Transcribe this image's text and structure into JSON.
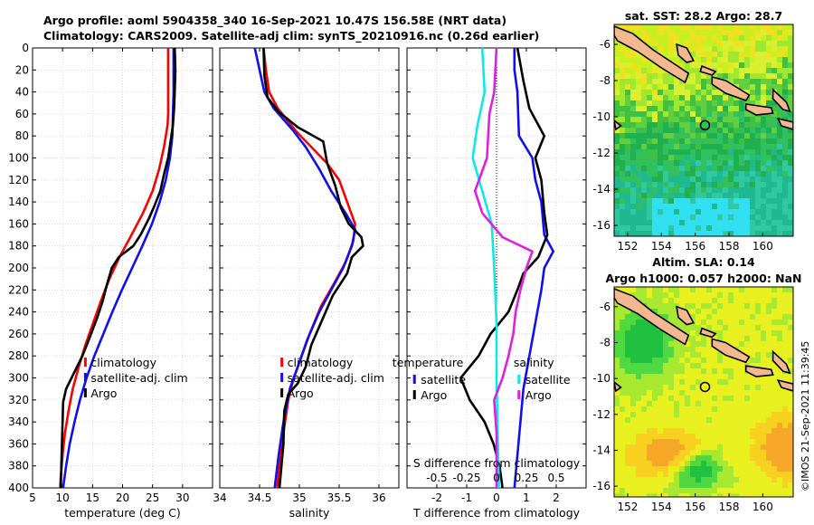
{
  "header": {
    "line1": "Argo profile: aoml 5904358_340 16-Sep-2021 10.47S 156.58E (NRT data)",
    "line2": "Climatology: CARS2009. Satellite-adj clim: synTS_20210916.nc (0.26d earlier)"
  },
  "colors": {
    "climatology": "#ff0000",
    "satellite": "#1010ee",
    "argo": "#000000",
    "s_sat": "#10e8e8",
    "s_argo": "#e020e0"
  },
  "chart_data": [
    {
      "id": "temperature",
      "type": "line",
      "xlabel": "temperature (deg C)",
      "ylabel": "",
      "xlim": [
        5,
        35
      ],
      "ylim": [
        400,
        0
      ],
      "xticks": [
        5,
        10,
        15,
        20,
        25,
        30
      ],
      "xtick_labels": [
        "5",
        "10",
        "15",
        "20",
        "25",
        "30"
      ],
      "yticks": [
        0,
        20,
        40,
        60,
        80,
        100,
        120,
        140,
        160,
        180,
        200,
        220,
        240,
        260,
        280,
        300,
        320,
        340,
        360,
        380,
        400
      ],
      "ytick_labels": [
        "0",
        "20",
        "40",
        "60",
        "80",
        "100",
        "120",
        "140",
        "160",
        "180",
        "200",
        "220",
        "240",
        "260",
        "280",
        "300",
        "320",
        "340",
        "360",
        "380",
        "400"
      ],
      "legend": [
        "climatology",
        "satellite-adj. clim",
        "Argo"
      ],
      "series": [
        {
          "name": "climatology",
          "points": [
            [
              27.6,
              0
            ],
            [
              27.6,
              20
            ],
            [
              27.6,
              40
            ],
            [
              27.6,
              60
            ],
            [
              27.5,
              70
            ],
            [
              26.9,
              90
            ],
            [
              26.1,
              110
            ],
            [
              25.0,
              130
            ],
            [
              23.4,
              150
            ],
            [
              21.5,
              170
            ],
            [
              19.5,
              190
            ],
            [
              17.8,
              210
            ],
            [
              16.4,
              230
            ],
            [
              15.1,
              250
            ],
            [
              13.8,
              270
            ],
            [
              12.7,
              290
            ],
            [
              11.7,
              310
            ],
            [
              11.0,
              330
            ],
            [
              10.4,
              350
            ],
            [
              10.0,
              370
            ],
            [
              9.7,
              390
            ],
            [
              9.6,
              400
            ]
          ]
        },
        {
          "name": "satellite-adj. clim",
          "points": [
            [
              28.5,
              0
            ],
            [
              28.5,
              20
            ],
            [
              28.5,
              40
            ],
            [
              28.4,
              60
            ],
            [
              28.3,
              80
            ],
            [
              27.9,
              100
            ],
            [
              27.2,
              120
            ],
            [
              26.2,
              140
            ],
            [
              24.9,
              160
            ],
            [
              23.3,
              180
            ],
            [
              21.6,
              200
            ],
            [
              19.9,
              220
            ],
            [
              18.3,
              240
            ],
            [
              16.8,
              260
            ],
            [
              15.3,
              280
            ],
            [
              14.0,
              300
            ],
            [
              12.9,
              320
            ],
            [
              12.0,
              340
            ],
            [
              11.2,
              360
            ],
            [
              10.6,
              380
            ],
            [
              10.1,
              400
            ]
          ]
        },
        {
          "name": "Argo",
          "points": [
            [
              28.7,
              0
            ],
            [
              28.8,
              20
            ],
            [
              28.7,
              40
            ],
            [
              28.6,
              55
            ],
            [
              28.4,
              70
            ],
            [
              28.0,
              85
            ],
            [
              27.6,
              100
            ],
            [
              26.9,
              115
            ],
            [
              26.3,
              130
            ],
            [
              25.2,
              145
            ],
            [
              24.4,
              155
            ],
            [
              23.0,
              170
            ],
            [
              21.8,
              180
            ],
            [
              19.4,
              190
            ],
            [
              18.2,
              200
            ],
            [
              17.4,
              215
            ],
            [
              16.7,
              230
            ],
            [
              15.8,
              245
            ],
            [
              15.1,
              255
            ],
            [
              14.2,
              268
            ],
            [
              13.3,
              280
            ],
            [
              12.4,
              290
            ],
            [
              11.5,
              300
            ],
            [
              10.6,
              310
            ],
            [
              10.1,
              322
            ],
            [
              10.0,
              340
            ],
            [
              9.9,
              360
            ],
            [
              9.8,
              380
            ],
            [
              9.7,
              400
            ]
          ]
        }
      ]
    },
    {
      "id": "salinity",
      "type": "line",
      "xlabel": "salinity",
      "ylabel": "",
      "xlim": [
        34,
        36.25
      ],
      "ylim": [
        400,
        0
      ],
      "xticks": [
        34,
        34.5,
        35,
        35.5,
        36
      ],
      "xtick_labels": [
        "34",
        "34.5",
        "35",
        "35.5",
        "36"
      ],
      "legend": [
        "climatology",
        "satellite-adj. clim",
        "Argo"
      ],
      "series": [
        {
          "name": "climatology",
          "points": [
            [
              34.55,
              0
            ],
            [
              34.58,
              20
            ],
            [
              34.62,
              40
            ],
            [
              34.73,
              55
            ],
            [
              34.95,
              75
            ],
            [
              35.15,
              90
            ],
            [
              35.35,
              105
            ],
            [
              35.5,
              120
            ],
            [
              35.6,
              140
            ],
            [
              35.7,
              160
            ],
            [
              35.68,
              175
            ],
            [
              35.58,
              195
            ],
            [
              35.43,
              215
            ],
            [
              35.27,
              235
            ],
            [
              35.13,
              260
            ],
            [
              35.03,
              280
            ],
            [
              34.93,
              300
            ],
            [
              34.86,
              320
            ],
            [
              34.8,
              350
            ],
            [
              34.75,
              380
            ],
            [
              34.72,
              400
            ]
          ]
        },
        {
          "name": "satellite-adj. clim",
          "points": [
            [
              34.44,
              0
            ],
            [
              34.5,
              20
            ],
            [
              34.56,
              40
            ],
            [
              34.68,
              55
            ],
            [
              34.92,
              75
            ],
            [
              35.08,
              90
            ],
            [
              35.25,
              110
            ],
            [
              35.4,
              130
            ],
            [
              35.58,
              150
            ],
            [
              35.7,
              165
            ],
            [
              35.66,
              180
            ],
            [
              35.55,
              200
            ],
            [
              35.4,
              220
            ],
            [
              35.25,
              240
            ],
            [
              35.1,
              265
            ],
            [
              34.98,
              290
            ],
            [
              34.88,
              310
            ],
            [
              34.8,
              340
            ],
            [
              34.74,
              370
            ],
            [
              34.69,
              400
            ]
          ]
        },
        {
          "name": "Argo",
          "points": [
            [
              34.55,
              0
            ],
            [
              34.56,
              25
            ],
            [
              34.6,
              45
            ],
            [
              34.74,
              58
            ],
            [
              34.98,
              72
            ],
            [
              35.3,
              85
            ],
            [
              35.35,
              105
            ],
            [
              35.45,
              125
            ],
            [
              35.52,
              145
            ],
            [
              35.62,
              160
            ],
            [
              35.78,
              172
            ],
            [
              35.8,
              180
            ],
            [
              35.66,
              190
            ],
            [
              35.6,
              205
            ],
            [
              35.42,
              225
            ],
            [
              35.3,
              245
            ],
            [
              35.15,
              270
            ],
            [
              35.08,
              290
            ],
            [
              34.98,
              305
            ],
            [
              34.86,
              315
            ],
            [
              34.81,
              330
            ],
            [
              34.8,
              360
            ],
            [
              34.75,
              400
            ]
          ]
        }
      ]
    },
    {
      "id": "difference",
      "type": "line",
      "xlabel": "T difference from climatology",
      "xlabel_top": "S difference from climatology",
      "xlim": [
        -3,
        3
      ],
      "ylim": [
        400,
        0
      ],
      "xticks": [
        -2,
        -1,
        0,
        1,
        2
      ],
      "xtick_labels": [
        "-2",
        "-1",
        "0",
        "1",
        "2"
      ],
      "s_ticks": [
        -0.5,
        -0.25,
        0,
        0.25,
        0.5
      ],
      "s_tick_labels": [
        "-0.5",
        "-0.25",
        "0",
        "0.25",
        "0.5"
      ],
      "legend_t_title": "temperature",
      "legend_s_title": "salinity",
      "legend_t": [
        "satellite",
        "Argo"
      ],
      "legend_s": [
        "satellite",
        "Argo"
      ],
      "series": [
        {
          "name": "T satellite",
          "points": [
            [
              0.6,
              0
            ],
            [
              0.6,
              20
            ],
            [
              0.7,
              40
            ],
            [
              0.75,
              80
            ],
            [
              1.2,
              100
            ],
            [
              1.3,
              120
            ],
            [
              1.5,
              140
            ],
            [
              1.6,
              170
            ],
            [
              1.9,
              185
            ],
            [
              1.6,
              200
            ],
            [
              1.5,
              220
            ],
            [
              1.3,
              250
            ],
            [
              1.1,
              280
            ],
            [
              0.9,
              310
            ],
            [
              0.8,
              340
            ],
            [
              0.7,
              370
            ],
            [
              0.6,
              400
            ]
          ]
        },
        {
          "name": "T Argo",
          "points": [
            [
              0.7,
              0
            ],
            [
              0.9,
              30
            ],
            [
              1.1,
              55
            ],
            [
              1.6,
              80
            ],
            [
              1.3,
              100
            ],
            [
              1.5,
              120
            ],
            [
              1.6,
              150
            ],
            [
              1.7,
              170
            ],
            [
              1.4,
              190
            ],
            [
              0.9,
              205
            ],
            [
              0.7,
              220
            ],
            [
              0.4,
              240
            ],
            [
              -0.2,
              260
            ],
            [
              -0.6,
              280
            ],
            [
              -1.2,
              300
            ],
            [
              -0.9,
              320
            ],
            [
              -0.4,
              340
            ],
            [
              -0.1,
              360
            ],
            [
              0.1,
              380
            ],
            [
              0.2,
              400
            ]
          ]
        },
        {
          "name": "S satellite",
          "points": [
            [
              -0.12,
              0
            ],
            [
              -0.1,
              40
            ],
            [
              -0.16,
              70
            ],
            [
              -0.2,
              100
            ],
            [
              -0.12,
              130
            ],
            [
              -0.04,
              160
            ],
            [
              -0.02,
              200
            ],
            [
              0.0,
              250
            ],
            [
              0.0,
              300
            ],
            [
              0.01,
              350
            ],
            [
              0.02,
              400
            ]
          ]
        },
        {
          "name": "S Argo",
          "points": [
            [
              0.0,
              0
            ],
            [
              -0.02,
              40
            ],
            [
              -0.06,
              60
            ],
            [
              -0.08,
              100
            ],
            [
              -0.18,
              130
            ],
            [
              -0.12,
              150
            ],
            [
              0.05,
              172
            ],
            [
              0.3,
              185
            ],
            [
              0.25,
              200
            ],
            [
              0.2,
              220
            ],
            [
              0.16,
              240
            ],
            [
              0.14,
              260
            ],
            [
              0.1,
              280
            ],
            [
              0.05,
              300
            ],
            [
              -0.02,
              320
            ],
            [
              0.0,
              350
            ],
            [
              0.0,
              400
            ]
          ]
        }
      ]
    },
    {
      "id": "sst_map",
      "type": "heatmap",
      "title": "sat. SST: 28.2 Argo: 28.7",
      "xticks": [
        152,
        154,
        156,
        158,
        160
      ],
      "xtick_labels": [
        "152",
        "154",
        "156",
        "158",
        "160"
      ],
      "yticks": [
        -6,
        -8,
        -10,
        -12,
        -14,
        -16
      ],
      "ytick_labels": [
        "-6",
        "-8",
        "-10",
        "-12",
        "-14",
        "-16"
      ],
      "xlim": [
        151.2,
        161.8
      ],
      "ylim": [
        -16.6,
        -4.9
      ],
      "marker": [
        156.58,
        -10.47
      ]
    },
    {
      "id": "sla_map",
      "type": "heatmap",
      "title_line1": "Altim. SLA: 0.14",
      "title_line2": "Argo h1000: 0.057 h2000: NaN",
      "xticks": [
        152,
        154,
        156,
        158,
        160
      ],
      "xtick_labels": [
        "152",
        "154",
        "156",
        "158",
        "160"
      ],
      "yticks": [
        -6,
        -8,
        -10,
        -12,
        -14,
        -16
      ],
      "ytick_labels": [
        "-6",
        "-8",
        "-10",
        "-12",
        "-14",
        "-16"
      ],
      "xlim": [
        151.2,
        161.8
      ],
      "ylim": [
        -16.6,
        -4.9
      ],
      "marker": [
        156.58,
        -10.47
      ]
    }
  ],
  "credit": "©IMOS 21-Sep-2021 11:39:45"
}
